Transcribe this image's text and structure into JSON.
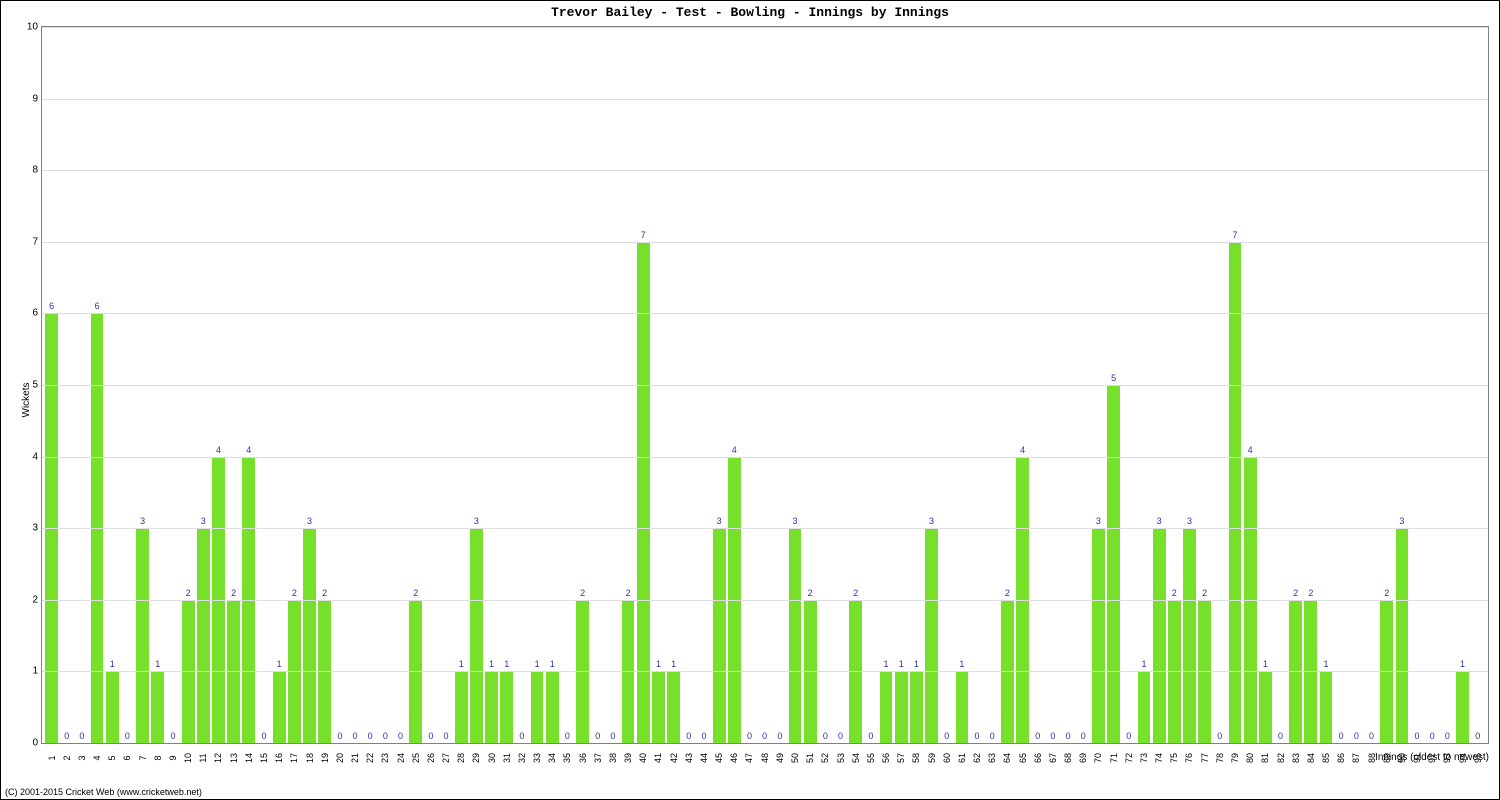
{
  "chart": {
    "type": "bar",
    "title": "Trevor Bailey - Test - Bowling - Innings by Innings",
    "title_fontsize": 13,
    "xlabel": "Innings (oldest to newest)",
    "ylabel": "Wickets",
    "label_fontsize": 10,
    "ylim": [
      0,
      10
    ],
    "ytick_step": 1,
    "yticks": [
      0,
      1,
      2,
      3,
      4,
      5,
      6,
      7,
      8,
      9,
      10
    ],
    "background_color": "#ffffff",
    "grid_color": "#dddddd",
    "border_color": "#808080",
    "bar_color": "#76e02a",
    "value_label_color": "#3030aa",
    "bar_width_ratio": 0.84,
    "tick_font_size": 10,
    "value_label_font_size": 9,
    "categories": [
      "1",
      "2",
      "3",
      "4",
      "5",
      "6",
      "7",
      "8",
      "9",
      "10",
      "11",
      "12",
      "13",
      "14",
      "15",
      "16",
      "17",
      "18",
      "19",
      "20",
      "21",
      "22",
      "23",
      "24",
      "25",
      "26",
      "27",
      "28",
      "29",
      "30",
      "31",
      "32",
      "33",
      "34",
      "35",
      "36",
      "37",
      "38",
      "39",
      "40",
      "41",
      "42",
      "43",
      "44",
      "45",
      "46",
      "47",
      "48",
      "49",
      "50",
      "51",
      "52",
      "53",
      "54",
      "55",
      "56",
      "57",
      "58",
      "59",
      "60",
      "61",
      "62",
      "63",
      "64",
      "65",
      "66",
      "67",
      "68",
      "69",
      "70",
      "71",
      "72",
      "73",
      "74",
      "75",
      "76",
      "77",
      "78",
      "79",
      "80",
      "81",
      "82",
      "83",
      "84",
      "85",
      "86",
      "87",
      "88",
      "89",
      "90",
      "91",
      "92",
      "93",
      "94",
      "95"
    ],
    "values": [
      6,
      0,
      0,
      6,
      1,
      0,
      3,
      1,
      0,
      2,
      3,
      4,
      2,
      4,
      0,
      1,
      2,
      3,
      2,
      0,
      0,
      0,
      0,
      0,
      2,
      0,
      0,
      1,
      3,
      1,
      1,
      0,
      1,
      1,
      0,
      2,
      0,
      0,
      2,
      7,
      1,
      1,
      0,
      0,
      3,
      4,
      0,
      0,
      0,
      3,
      2,
      0,
      0,
      2,
      0,
      1,
      1,
      1,
      3,
      0,
      1,
      0,
      0,
      2,
      4,
      0,
      0,
      0,
      0,
      3,
      5,
      0,
      1,
      3,
      2,
      3,
      2,
      0,
      7,
      4,
      1,
      0,
      2,
      2,
      1,
      0,
      0,
      0,
      2,
      3,
      0,
      0,
      0,
      1,
      0
    ]
  },
  "copyright": "(C) 2001-2015 Cricket Web (www.cricketweb.net)"
}
